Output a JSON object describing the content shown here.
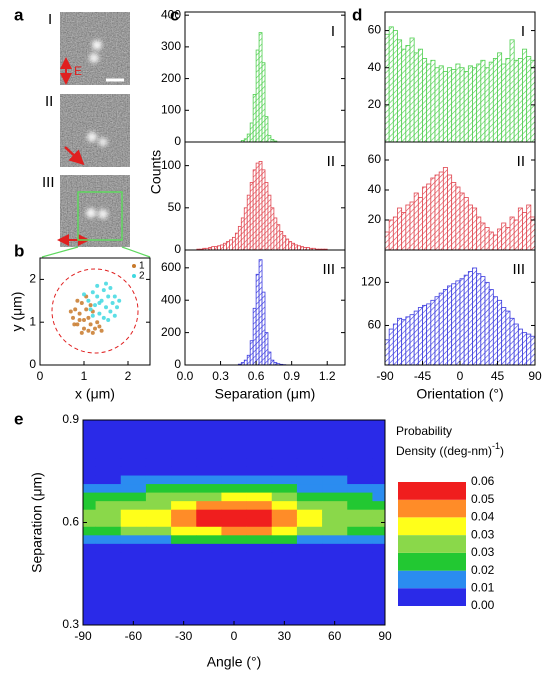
{
  "panel_a": {
    "label": "a",
    "rows": [
      "I",
      "II",
      "III"
    ],
    "field": "E"
  },
  "chart_data": [
    {
      "type": "scatter",
      "panel": "b",
      "xlabel": "x (μm)",
      "ylabel": "y (μm)",
      "xlim": [
        0,
        2.5
      ],
      "xticks": [
        0,
        1,
        2
      ],
      "ylim": [
        0,
        2.5
      ],
      "yticks": [
        0,
        1,
        2
      ],
      "legend": "upper right",
      "series": [
        {
          "name": "1",
          "color": "#c8792a",
          "x": [
            0.75,
            0.8,
            0.85,
            0.9,
            0.95,
            1.0,
            1.0,
            1.05,
            1.1,
            1.1,
            1.15,
            1.2,
            1.25,
            1.3,
            0.7,
            0.85,
            0.95,
            1.2,
            1.35,
            0.78,
            1.05,
            0.9,
            1.15,
            1.4
          ],
          "values": [
            1.1,
            1.3,
            0.95,
            1.2,
            1.45,
            1.05,
            0.85,
            1.3,
            1.1,
            0.8,
            0.95,
            1.25,
            0.85,
            1.0,
            1.25,
            1.5,
            0.75,
            0.75,
            0.9,
            0.95,
            1.6,
            1.05,
            1.4,
            0.8
          ]
        },
        {
          "name": "2",
          "color": "#3fd8e0",
          "x": [
            1.1,
            1.2,
            1.25,
            1.3,
            1.35,
            1.4,
            1.45,
            1.5,
            1.55,
            1.6,
            1.65,
            1.7,
            1.15,
            1.3,
            1.45,
            1.6,
            1.75,
            1.0,
            1.35,
            1.5,
            1.7,
            1.2,
            1.55,
            1.8
          ],
          "values": [
            1.5,
            1.7,
            1.4,
            1.6,
            1.2,
            1.5,
            1.75,
            1.35,
            1.6,
            1.25,
            1.45,
            1.6,
            1.3,
            1.85,
            1.1,
            1.8,
            1.35,
            1.65,
            1.45,
            1.9,
            1.15,
            1.15,
            1.05,
            1.5
          ]
        }
      ]
    },
    {
      "type": "histogram",
      "panel": "c",
      "label": "I",
      "color": "#4fcf4f",
      "bins": [
        0.475,
        0.5,
        0.525,
        0.55,
        0.575,
        0.6,
        0.625,
        0.65,
        0.675,
        0.7,
        0.725,
        0.75,
        0.775
      ],
      "values": [
        5,
        10,
        25,
        60,
        150,
        290,
        345,
        250,
        80,
        20,
        8,
        3
      ],
      "xlim": [
        0,
        1.35
      ],
      "ylim": [
        0,
        410
      ],
      "yticks": [
        0,
        100,
        200,
        300,
        400
      ]
    },
    {
      "type": "histogram",
      "label": "II",
      "ylabel": "Counts",
      "color": "#e0454f",
      "bins": [
        0.1,
        0.125,
        0.15,
        0.175,
        0.2,
        0.225,
        0.25,
        0.275,
        0.3,
        0.325,
        0.35,
        0.375,
        0.4,
        0.425,
        0.45,
        0.475,
        0.5,
        0.525,
        0.55,
        0.575,
        0.6,
        0.625,
        0.65,
        0.675,
        0.7,
        0.725,
        0.75,
        0.775,
        0.8,
        0.825,
        0.85,
        0.875,
        0.9,
        0.925,
        0.95,
        0.975,
        1.0,
        1.025,
        1.05,
        1.075,
        1.1,
        1.125,
        1.15,
        1.175,
        1.2
      ],
      "values": [
        1,
        1,
        2,
        2,
        3,
        4,
        4,
        5,
        6,
        8,
        10,
        12,
        15,
        20,
        28,
        38,
        50,
        65,
        80,
        95,
        103,
        105,
        95,
        80,
        65,
        50,
        38,
        30,
        22,
        17,
        13,
        10,
        8,
        6,
        5,
        4,
        3,
        3,
        2,
        2,
        1,
        1,
        1,
        1
      ],
      "xlim": [
        0,
        1.35
      ],
      "ylim": [
        0,
        128
      ],
      "yticks": [
        0,
        50,
        100
      ]
    },
    {
      "type": "histogram",
      "label": "III",
      "xlabel": "Separation (μm)",
      "color": "#3a3adf",
      "bins": [
        0.45,
        0.475,
        0.5,
        0.525,
        0.55,
        0.575,
        0.6,
        0.625,
        0.65,
        0.675,
        0.7,
        0.725,
        0.75,
        0.775,
        0.8,
        0.825,
        0.85
      ],
      "values": [
        5,
        15,
        30,
        60,
        150,
        350,
        560,
        650,
        450,
        200,
        80,
        30,
        15,
        8,
        4,
        2
      ],
      "xlim": [
        0,
        1.35
      ],
      "xticks": [
        {
          "value": 0,
          "label": "0.0"
        },
        0.3,
        0.6,
        0.9,
        1.2
      ],
      "ylim": [
        0,
        710
      ],
      "yticks": [
        0,
        200,
        400,
        600
      ]
    },
    {
      "type": "histogram",
      "panel": "d",
      "label": "I",
      "color": "#4fcf4f",
      "bins": [
        -90,
        -85,
        -80,
        -75,
        -70,
        -65,
        -60,
        -55,
        -50,
        -45,
        -40,
        -35,
        -30,
        -25,
        -20,
        -15,
        -10,
        -5,
        0,
        5,
        10,
        15,
        20,
        25,
        30,
        35,
        40,
        45,
        50,
        55,
        60,
        65,
        70,
        75,
        80,
        85,
        90
      ],
      "values": [
        58,
        62,
        60,
        55,
        50,
        52,
        56,
        48,
        50,
        45,
        42,
        44,
        40,
        41,
        38,
        40,
        39,
        42,
        40,
        38,
        41,
        40,
        42,
        44,
        40,
        43,
        45,
        48,
        42,
        45,
        55,
        44,
        45,
        50,
        46,
        44
      ],
      "xlim": [
        -90,
        90
      ],
      "ylim": [
        0,
        70
      ],
      "yticks": [
        20,
        40,
        60
      ]
    },
    {
      "type": "histogram",
      "label": "II",
      "color": "#e0454f",
      "bins": [
        -90,
        -85,
        -80,
        -75,
        -70,
        -65,
        -60,
        -55,
        -50,
        -45,
        -40,
        -35,
        -30,
        -25,
        -20,
        -15,
        -10,
        -5,
        0,
        5,
        10,
        15,
        20,
        25,
        30,
        35,
        40,
        45,
        50,
        55,
        60,
        65,
        70,
        75,
        80,
        85,
        90
      ],
      "values": [
        12,
        20,
        22,
        28,
        25,
        30,
        32,
        38,
        35,
        42,
        44,
        48,
        50,
        52,
        55,
        50,
        45,
        42,
        38,
        35,
        30,
        28,
        22,
        18,
        15,
        12,
        10,
        14,
        18,
        15,
        22,
        20,
        28,
        25,
        30,
        22
      ],
      "xlim": [
        -90,
        90
      ],
      "ylim": [
        0,
        72
      ],
      "yticks": [
        20,
        40,
        60
      ]
    },
    {
      "type": "histogram",
      "label": "III",
      "xlabel": "Orientation (°)",
      "color": "#3a3adf",
      "bins": [
        -90,
        -85,
        -80,
        -75,
        -70,
        -65,
        -60,
        -55,
        -50,
        -45,
        -40,
        -35,
        -30,
        -25,
        -20,
        -15,
        -10,
        -5,
        0,
        5,
        10,
        15,
        20,
        25,
        30,
        35,
        40,
        45,
        50,
        55,
        60,
        65,
        70,
        75,
        80,
        85,
        90
      ],
      "values": [
        40,
        55,
        62,
        70,
        68,
        72,
        75,
        80,
        85,
        88,
        90,
        95,
        100,
        105,
        110,
        115,
        118,
        122,
        125,
        130,
        135,
        140,
        132,
        128,
        120,
        110,
        100,
        95,
        85,
        80,
        70,
        62,
        55,
        50,
        48,
        45
      ],
      "xlim": [
        -90,
        90
      ],
      "xticks": [
        -90,
        -45,
        0,
        45,
        90
      ],
      "ylim": [
        5,
        165
      ],
      "yticks": [
        60,
        120
      ]
    },
    {
      "type": "contour",
      "panel": "e",
      "xlabel": "Angle (°)",
      "ylabel": "Separation (μm)",
      "xlim": [
        -90,
        90
      ],
      "xticks": [
        -90,
        -60,
        -30,
        0,
        30,
        60,
        90
      ],
      "ylim": [
        0.3,
        0.9
      ],
      "yticks": [
        0.3,
        0.6,
        0.9
      ],
      "x": [
        -90,
        -75,
        -60,
        -45,
        -30,
        -15,
        0,
        15,
        30,
        45,
        60,
        75,
        90
      ],
      "y": [
        0.775,
        0.75,
        0.725,
        0.7,
        0.675,
        0.65,
        0.625,
        0.6,
        0.575,
        0.55,
        0.525
      ],
      "z": [
        [
          0.002,
          0.002,
          0.002,
          0.002,
          0.002,
          0.003,
          0.003,
          0.003,
          0.002,
          0.002,
          0.002,
          0.002,
          0.001
        ],
        [
          0.004,
          0.004,
          0.004,
          0.005,
          0.006,
          0.007,
          0.007,
          0.007,
          0.006,
          0.005,
          0.004,
          0.004,
          0.003
        ],
        [
          0.008,
          0.008,
          0.009,
          0.011,
          0.012,
          0.014,
          0.015,
          0.014,
          0.012,
          0.01,
          0.009,
          0.008,
          0.007
        ],
        [
          0.013,
          0.013,
          0.015,
          0.018,
          0.02,
          0.023,
          0.024,
          0.024,
          0.02,
          0.017,
          0.014,
          0.013,
          0.012
        ],
        [
          0.019,
          0.02,
          0.022,
          0.026,
          0.03,
          0.034,
          0.036,
          0.035,
          0.03,
          0.025,
          0.021,
          0.019,
          0.017
        ],
        [
          0.025,
          0.026,
          0.03,
          0.034,
          0.039,
          0.045,
          0.048,
          0.047,
          0.039,
          0.033,
          0.028,
          0.025,
          0.023
        ],
        [
          0.029,
          0.031,
          0.035,
          0.041,
          0.047,
          0.053,
          0.056,
          0.055,
          0.047,
          0.039,
          0.033,
          0.029,
          0.027
        ],
        [
          0.03,
          0.032,
          0.036,
          0.042,
          0.048,
          0.055,
          0.058,
          0.057,
          0.048,
          0.04,
          0.034,
          0.03,
          0.028
        ],
        [
          0.023,
          0.024,
          0.027,
          0.032,
          0.036,
          0.041,
          0.044,
          0.043,
          0.036,
          0.03,
          0.026,
          0.023,
          0.021
        ],
        [
          0.012,
          0.013,
          0.014,
          0.017,
          0.019,
          0.022,
          0.023,
          0.023,
          0.019,
          0.016,
          0.014,
          0.012,
          0.011
        ],
        [
          0.004,
          0.004,
          0.004,
          0.005,
          0.006,
          0.007,
          0.007,
          0.007,
          0.006,
          0.005,
          0.004,
          0.004,
          0.003
        ]
      ],
      "levels": [
        {
          "value": 0,
          "label": "0.00"
        },
        {
          "value": 0.0086,
          "label": "0.01"
        },
        {
          "value": 0.0171,
          "label": "0.02"
        },
        {
          "value": 0.0257,
          "label": "0.03"
        },
        {
          "value": 0.0343,
          "label": "0.03"
        },
        {
          "value": 0.0429,
          "label": "0.04"
        },
        {
          "value": 0.0514,
          "label": "0.05"
        },
        {
          "value": 0.06,
          "label": "0.06"
        }
      ],
      "colors": [
        "#2a2ae8",
        "#2b8cf0",
        "#22c832",
        "#8ad84a",
        "#ffff1a",
        "#ff8c28",
        "#f01e1e"
      ],
      "colorbar_title": {
        "line1": "Probability",
        "line2": "Density ((deg-nm)",
        "sup": "-1",
        "end": ")"
      }
    }
  ]
}
